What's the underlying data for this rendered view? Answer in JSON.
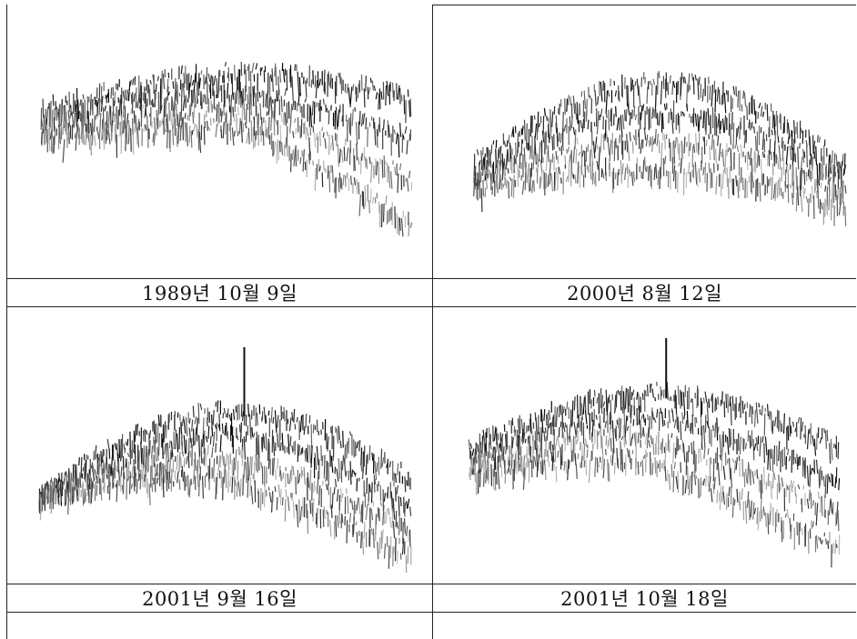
{
  "panels": [
    {
      "caption": "1989년 10월 9일"
    },
    {
      "caption": "2000년 8월 12일"
    },
    {
      "caption": "2001년 9월 16일"
    },
    {
      "caption": "2001년 10월 18일"
    }
  ]
}
